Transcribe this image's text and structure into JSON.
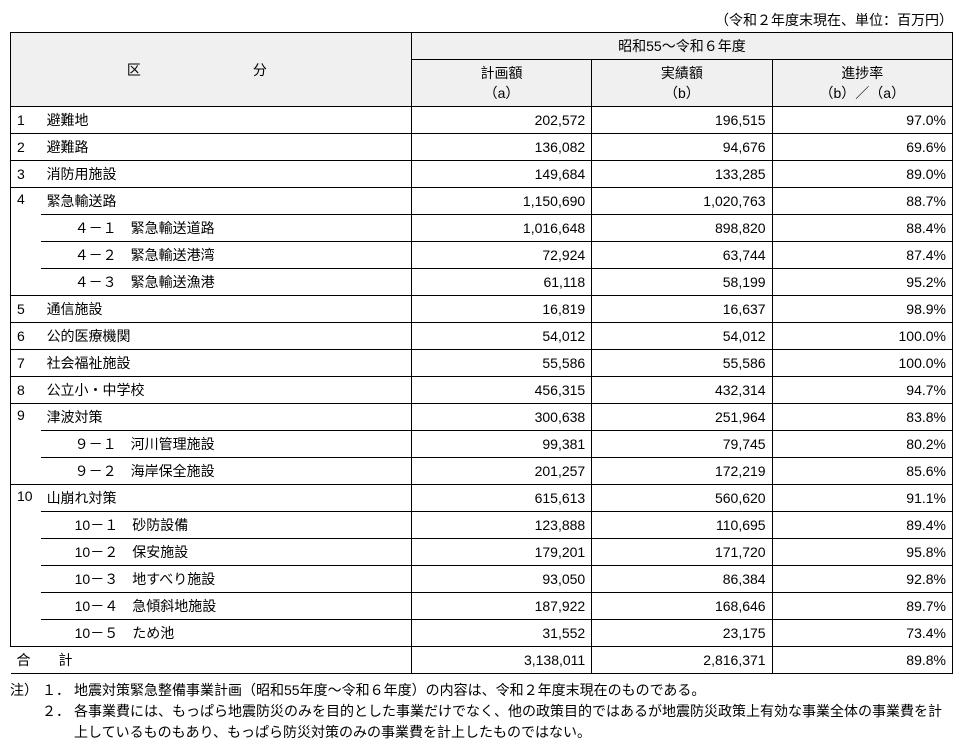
{
  "caption": "（令和２年度末現在、単位：百万円）",
  "header": {
    "category": "区　　分",
    "period": "昭和55～令和６年度",
    "col_a": "計画額\n（a）",
    "col_b": "実績額\n（b）",
    "col_c": "進捗率\n（b）／（a）"
  },
  "rows": [
    {
      "n": "1",
      "label": "避難地",
      "a": "202,572",
      "b": "196,515",
      "c": "97.0%"
    },
    {
      "n": "2",
      "label": "避難路",
      "a": "136,082",
      "b": "94,676",
      "c": "69.6%"
    },
    {
      "n": "3",
      "label": "消防用施設",
      "a": "149,684",
      "b": "133,285",
      "c": "89.0%"
    },
    {
      "n": "4",
      "label": "緊急輸送路",
      "a": "1,150,690",
      "b": "1,020,763",
      "c": "88.7%",
      "subs": [
        {
          "sub": "４－１　緊急輸送道路",
          "a": "1,016,648",
          "b": "898,820",
          "c": "88.4%"
        },
        {
          "sub": "４－２　緊急輸送港湾",
          "a": "72,924",
          "b": "63,744",
          "c": "87.4%"
        },
        {
          "sub": "４－３　緊急輸送漁港",
          "a": "61,118",
          "b": "58,199",
          "c": "95.2%"
        }
      ]
    },
    {
      "n": "5",
      "label": "通信施設",
      "a": "16,819",
      "b": "16,637",
      "c": "98.9%"
    },
    {
      "n": "6",
      "label": "公的医療機関",
      "a": "54,012",
      "b": "54,012",
      "c": "100.0%"
    },
    {
      "n": "7",
      "label": "社会福祉施設",
      "a": "55,586",
      "b": "55,586",
      "c": "100.0%"
    },
    {
      "n": "8",
      "label": "公立小・中学校",
      "a": "456,315",
      "b": "432,314",
      "c": "94.7%"
    },
    {
      "n": "9",
      "label": "津波対策",
      "a": "300,638",
      "b": "251,964",
      "c": "83.8%",
      "subs": [
        {
          "sub": "９－１　河川管理施設",
          "a": "99,381",
          "b": "79,745",
          "c": "80.2%"
        },
        {
          "sub": "９－２　海岸保全施設",
          "a": "201,257",
          "b": "172,219",
          "c": "85.6%"
        }
      ]
    },
    {
      "n": "10",
      "label": "山崩れ対策",
      "a": "615,613",
      "b": "560,620",
      "c": "91.1%",
      "subs": [
        {
          "sub": "10－１　砂防設備",
          "a": "123,888",
          "b": "110,695",
          "c": "89.4%"
        },
        {
          "sub": "10－２　保安施設",
          "a": "179,201",
          "b": "171,720",
          "c": "95.8%"
        },
        {
          "sub": "10－３　地すべり施設",
          "a": "93,050",
          "b": "86,384",
          "c": "92.8%"
        },
        {
          "sub": "10－４　急傾斜地施設",
          "a": "187,922",
          "b": "168,646",
          "c": "89.7%"
        },
        {
          "sub": "10－５　ため池",
          "a": "31,552",
          "b": "23,175",
          "c": "73.4%"
        }
      ]
    }
  ],
  "total": {
    "label": "合　　計",
    "a": "3,138,011",
    "b": "2,816,371",
    "c": "89.8%"
  },
  "notes_marker": "注）",
  "notes": [
    {
      "n": "１．",
      "t": "地震対策緊急整備事業計画（昭和55年度～令和６年度）の内容は、令和２年度末現在のものである。"
    },
    {
      "n": "２．",
      "t": "各事業費には、もっぱら地震防災のみを目的とした事業だけでなく、他の政策目的ではあるが地震防災政策上有効な事業全体の事業費を計上しているものもあり、もっぱら防災対策のみの事業費を計上したものではない。"
    }
  ],
  "colors": {
    "header_bg": "#f0f0f0",
    "border": "#000000",
    "text": "#000000",
    "bg": "#ffffff"
  }
}
